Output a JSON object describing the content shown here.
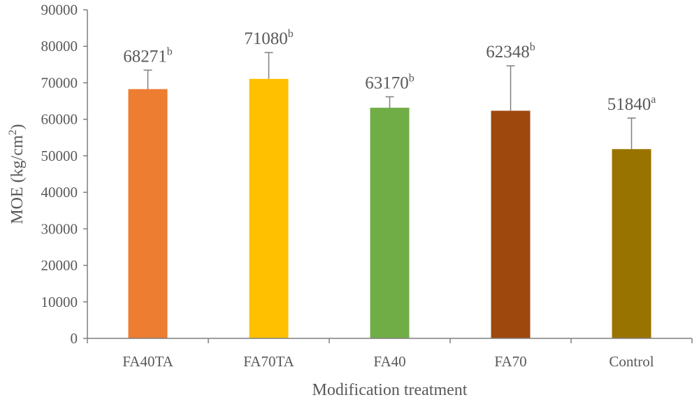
{
  "chart_data": {
    "type": "bar",
    "categories": [
      "FA40TA",
      "FA70TA",
      "FA40",
      "FA70",
      "Control"
    ],
    "values": [
      68271,
      71080,
      63170,
      62348,
      51840
    ],
    "error_plus": [
      5200,
      7200,
      3000,
      12300,
      8500
    ],
    "significance": [
      "b",
      "b",
      "b",
      "b",
      "a"
    ],
    "data_labels": [
      "68271",
      "71080",
      "63170",
      "62348",
      "51840"
    ],
    "bar_colors": [
      "#ED7D31",
      "#FFC000",
      "#70AD47",
      "#9E480E",
      "#997300"
    ],
    "yticks": [
      "0",
      "10000",
      "20000",
      "30000",
      "40000",
      "50000",
      "60000",
      "70000",
      "80000",
      "90000"
    ],
    "xlabel": "Modification treatment",
    "ylabel_main": "MOE (kg/cm",
    "ylabel_sup": "2",
    "ylabel_end": ")",
    "ylim": [
      0,
      90000
    ],
    "grid": false,
    "legend": "none"
  }
}
